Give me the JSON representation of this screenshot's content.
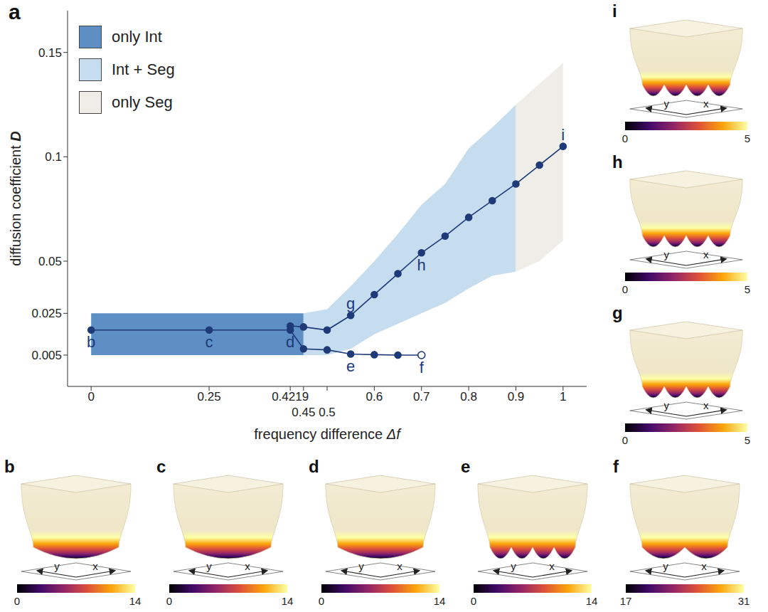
{
  "chart_data": {
    "type": "line",
    "title": "a",
    "x_label": "frequency difference Δf",
    "y_label": "diffusion coefficient D",
    "xlim": [
      -0.05,
      1.05
    ],
    "xticks": [
      0,
      0.25,
      0.4219,
      0.45,
      0.5,
      0.6,
      0.7,
      0.8,
      0.9,
      1
    ],
    "ylim": [
      -0.01,
      0.17
    ],
    "yticks": [
      0.005,
      0.025,
      0.05,
      0.1,
      0.15
    ],
    "legend": "upper left",
    "regions": [
      {
        "name": "only Int",
        "color": "#5d8ec4",
        "x": [
          0,
          0.45
        ],
        "lower": [
          0.005,
          0.005
        ],
        "upper": [
          0.025,
          0.025
        ]
      },
      {
        "name": "Int + Seg",
        "color": "#c6dcef",
        "x": [
          0.45,
          0.5,
          0.55,
          0.6,
          0.65,
          0.7,
          0.75,
          0.8,
          0.85,
          0.9
        ],
        "lower": [
          0.005,
          0.005,
          0.008,
          0.015,
          0.02,
          0.025,
          0.03,
          0.037,
          0.043,
          0.045
        ],
        "upper": [
          0.025,
          0.027,
          0.038,
          0.05,
          0.063,
          0.077,
          0.087,
          0.104,
          0.114,
          0.125
        ]
      },
      {
        "name": "only Seg",
        "color": "#eeede8",
        "x": [
          0.9,
          0.95,
          1
        ],
        "lower": [
          0.045,
          0.05,
          0.06
        ],
        "upper": [
          0.125,
          0.135,
          0.145
        ]
      }
    ],
    "series": [
      {
        "type": "line",
        "color": "#1e3a78",
        "marker": "circle",
        "x": [
          0,
          0.25,
          0.4219,
          0.45,
          0.5,
          0.55,
          0.6,
          0.65,
          0.7
        ],
        "values": [
          0.017,
          0.017,
          0.017,
          0.008,
          0.0075,
          0.0055,
          0.0052,
          0.005,
          0.005
        ]
      },
      {
        "type": "line",
        "color": "#1e3a78",
        "marker": "circle",
        "x": [
          0.4219,
          0.45,
          0.5,
          0.55,
          0.6,
          0.65,
          0.7,
          0.75,
          0.8,
          0.85,
          0.9,
          0.95,
          1
        ],
        "values": [
          0.019,
          0.0185,
          0.017,
          0.024,
          0.034,
          0.044,
          0.054,
          0.062,
          0.071,
          0.079,
          0.087,
          0.096,
          0.105
        ]
      },
      {
        "type": "scatter",
        "color": "#1e3a78",
        "marker": "open_circle",
        "x": [
          0.7
        ],
        "values": [
          0.005
        ]
      }
    ],
    "annotations": [
      {
        "text": "b",
        "x": 0,
        "y": 0.017,
        "position": "below"
      },
      {
        "text": "c",
        "x": 0.25,
        "y": 0.017,
        "position": "below"
      },
      {
        "text": "d",
        "x": 0.4219,
        "y": 0.017,
        "position": "below"
      },
      {
        "text": "e",
        "x": 0.55,
        "y": 0.0055,
        "position": "below"
      },
      {
        "text": "f",
        "x": 0.7,
        "y": 0.005,
        "position": "below"
      },
      {
        "text": "g",
        "x": 0.55,
        "y": 0.024,
        "position": "above"
      },
      {
        "text": "h",
        "x": 0.7,
        "y": 0.054,
        "position": "below"
      },
      {
        "text": "i",
        "x": 1,
        "y": 0.105,
        "position": "above"
      }
    ]
  },
  "panels": [
    {
      "label": "b",
      "axis_labels": [
        "y",
        "x"
      ],
      "colorbar": {
        "range": [
          0,
          14
        ],
        "ticks": [
          0,
          14
        ]
      }
    },
    {
      "label": "c",
      "axis_labels": [
        "y",
        "x"
      ],
      "colorbar": {
        "range": [
          0,
          14
        ],
        "ticks": [
          0,
          14
        ]
      }
    },
    {
      "label": "d",
      "axis_labels": [
        "y",
        "x"
      ],
      "colorbar": {
        "range": [
          0,
          14
        ],
        "ticks": [
          0,
          14
        ]
      }
    },
    {
      "label": "e",
      "axis_labels": [
        "y",
        "x"
      ],
      "colorbar": {
        "range": [
          0,
          14
        ],
        "ticks": [
          0,
          14
        ]
      }
    },
    {
      "label": "f",
      "axis_labels": [
        "y",
        "x"
      ],
      "colorbar": {
        "range": [
          17,
          31
        ],
        "ticks": [
          17,
          31
        ]
      }
    },
    {
      "label": "g",
      "axis_labels": [
        "y",
        "x"
      ],
      "colorbar": {
        "range": [
          0,
          5
        ],
        "ticks": [
          0,
          5
        ]
      }
    },
    {
      "label": "h",
      "axis_labels": [
        "y",
        "x"
      ],
      "colorbar": {
        "range": [
          0,
          5
        ],
        "ticks": [
          0,
          5
        ]
      }
    },
    {
      "label": "i",
      "axis_labels": [
        "y",
        "x"
      ],
      "colorbar": {
        "range": [
          0,
          5
        ],
        "ticks": [
          0,
          5
        ]
      }
    }
  ]
}
